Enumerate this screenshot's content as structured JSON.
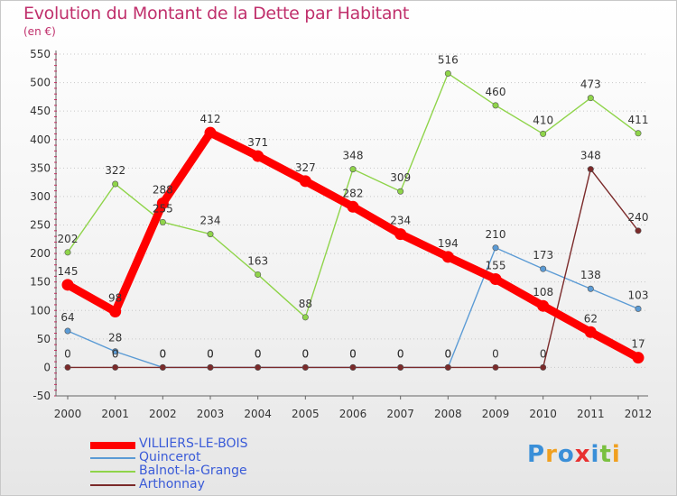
{
  "title": "Evolution du Montant de la Dette par Habitant",
  "unit": "(en €)",
  "chart_data": {
    "type": "line",
    "title": "Evolution du Montant de la Dette par Habitant",
    "ylabel": "(en €)",
    "xlabel": "",
    "ylim": [
      -50,
      550
    ],
    "yticks": [
      -50,
      0,
      50,
      100,
      150,
      200,
      250,
      300,
      350,
      400,
      450,
      500,
      550
    ],
    "grid": "horizontal dotted",
    "categories": [
      "2000",
      "2001",
      "2002",
      "2003",
      "2004",
      "2005",
      "2006",
      "2007",
      "2008",
      "2009",
      "2010",
      "2011",
      "2012"
    ],
    "series": [
      {
        "name": "Balnot-la-Grange",
        "color": "#8fd44a",
        "values": [
          202,
          322,
          255,
          234,
          163,
          88,
          348,
          309,
          516,
          460,
          410,
          473,
          411
        ],
        "labels": [
          "202",
          "322",
          "255",
          "234",
          "163",
          "88",
          "348",
          "309",
          "516",
          "460",
          "410",
          "473",
          "411"
        ]
      },
      {
        "name": "Quincerot",
        "color": "#5b9bd5",
        "values": [
          64,
          28,
          0,
          0,
          0,
          0,
          0,
          0,
          0,
          210,
          173,
          138,
          103
        ],
        "labels": [
          "64",
          "28",
          "0",
          "0",
          "0",
          "0",
          "0",
          "0",
          "0",
          "210",
          "173",
          "138",
          "103"
        ]
      },
      {
        "name": "Arthonnay",
        "color": "#7b2a2a",
        "values": [
          0,
          0,
          0,
          0,
          0,
          0,
          0,
          0,
          0,
          0,
          0,
          348,
          240
        ],
        "labels": [
          "0",
          "0",
          "0",
          "0",
          "0",
          "0",
          "0",
          "0",
          "0",
          "0",
          "0",
          "348",
          "240"
        ]
      },
      {
        "name": "VILLIERS-LE-BOIS",
        "color": "#ff0000",
        "values": [
          145,
          98,
          288,
          412,
          371,
          327,
          282,
          234,
          194,
          155,
          108,
          62,
          17
        ],
        "labels": [
          "145",
          "98",
          "288",
          "412",
          "371",
          "327",
          "282",
          "234",
          "194",
          "155",
          "108",
          "62",
          "17"
        ]
      }
    ],
    "legend": "bottom-left"
  },
  "legend": [
    {
      "label": "VILLIERS-LE-BOIS",
      "color": "#ff0000"
    },
    {
      "label": "Quincerot",
      "color": "#5b9bd5"
    },
    {
      "label": "Balnot-la-Grange",
      "color": "#8fd44a"
    },
    {
      "label": "Arthonnay",
      "color": "#7b2a2a"
    }
  ],
  "logo": {
    "letters": [
      "P",
      "r",
      "o",
      "x",
      "i",
      "t",
      "i"
    ],
    "colors": [
      "#3a8fd8",
      "#f0a020",
      "#3a8fd8",
      "#e83030",
      "#3a8fd8",
      "#7ac040",
      "#f0a020"
    ]
  }
}
